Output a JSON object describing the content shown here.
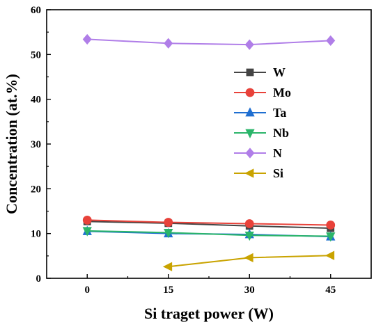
{
  "chart_data": {
    "type": "line",
    "xlabel": "Si traget power (W)",
    "ylabel": "Concentration (at.%)",
    "x": [
      0,
      15,
      30,
      45
    ],
    "xticks": [
      "0",
      "15",
      "30",
      "45"
    ],
    "yticks": [
      "0",
      "10",
      "20",
      "30",
      "40",
      "50",
      "60"
    ],
    "xlim": [
      -7.5,
      52.5
    ],
    "ylim": [
      0,
      60
    ],
    "legend_position": "center-right",
    "series": [
      {
        "name": "W",
        "color": "#444444",
        "marker": "square",
        "values": [
          12.7,
          12.3,
          11.7,
          11.2
        ]
      },
      {
        "name": "Mo",
        "color": "#e8423a",
        "marker": "circle",
        "values": [
          13.0,
          12.5,
          12.2,
          11.9
        ]
      },
      {
        "name": "Ta",
        "color": "#1f6fd1",
        "marker": "triangle-up",
        "values": [
          10.5,
          10.0,
          9.8,
          9.3
        ]
      },
      {
        "name": "Nb",
        "color": "#2bb56a",
        "marker": "triangle-down",
        "values": [
          10.6,
          10.2,
          9.6,
          9.4
        ]
      },
      {
        "name": "N",
        "color": "#b07ee8",
        "marker": "diamond",
        "values": [
          53.4,
          52.5,
          52.2,
          53.1
        ]
      },
      {
        "name": "Si",
        "color": "#c9a300",
        "marker": "triangle-left",
        "values": [
          null,
          2.6,
          4.6,
          5.1
        ]
      }
    ]
  }
}
